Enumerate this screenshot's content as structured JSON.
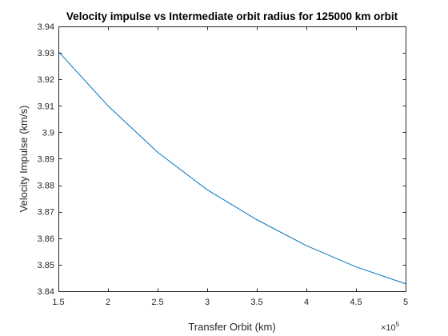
{
  "chart_data": {
    "type": "line",
    "title": "Velocity impulse vs Intermediate orbit radius for 125000 km orbit",
    "xlabel": "Transfer Orbit (km)",
    "ylabel": "Velocity Impulse (km/s)",
    "x_exponent_label": "×10",
    "x_exponent": "5",
    "xlim": [
      150000,
      500000
    ],
    "ylim": [
      3.84,
      3.94
    ],
    "xticks": [
      150000,
      200000,
      250000,
      300000,
      350000,
      400000,
      450000,
      500000
    ],
    "xtick_labels": [
      "1.5",
      "2",
      "2.5",
      "3",
      "3.5",
      "4",
      "4.5",
      "5"
    ],
    "yticks": [
      3.84,
      3.85,
      3.86,
      3.87,
      3.88,
      3.89,
      3.9,
      3.91,
      3.92,
      3.93,
      3.94
    ],
    "ytick_labels": [
      "3.84",
      "3.85",
      "3.86",
      "3.87",
      "3.88",
      "3.89",
      "3.9",
      "3.91",
      "3.92",
      "3.93",
      "3.94"
    ],
    "grid": false,
    "box": true,
    "series": [
      {
        "color": "#0072BD",
        "x": [
          150000,
          200000,
          250000,
          300000,
          350000,
          400000,
          450000,
          500000
        ],
        "y": [
          3.9305,
          3.91,
          3.8925,
          3.8783,
          3.867,
          3.8572,
          3.8492,
          3.8428
        ]
      }
    ]
  }
}
